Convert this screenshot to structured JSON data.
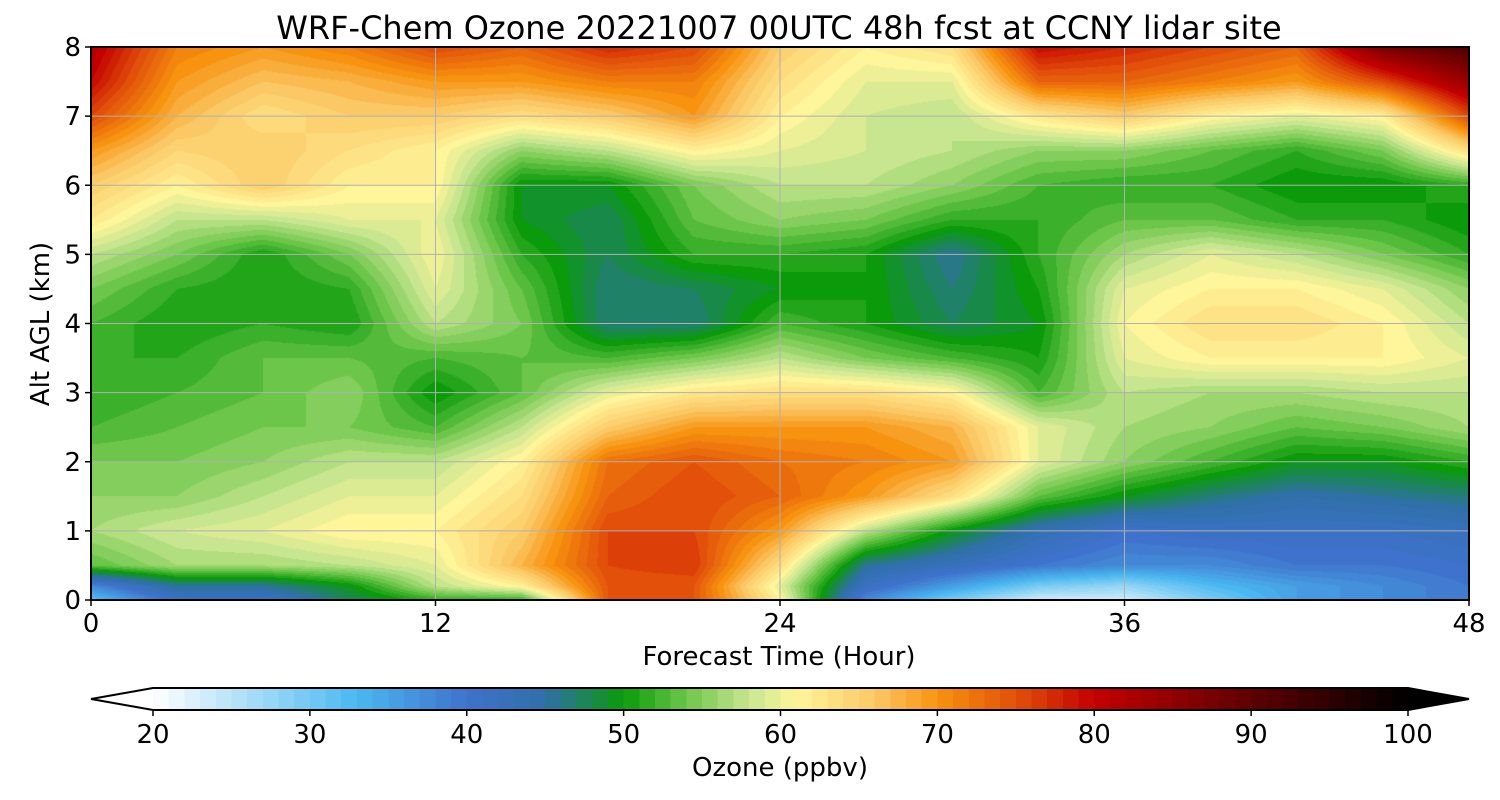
{
  "chart_data": {
    "type": "heatmap",
    "title": "WRF-Chem Ozone  20221007 00UTC 48h fcst at CCNY lidar site",
    "xlabel": "Forecast Time (Hour)",
    "ylabel": "Alt AGL (km)",
    "xlim": [
      0,
      48
    ],
    "ylim": [
      0,
      8
    ],
    "xticks": [
      "0",
      "12",
      "24",
      "36",
      "48"
    ],
    "yticks": [
      "0",
      "1",
      "2",
      "3",
      "4",
      "5",
      "6",
      "7",
      "8"
    ],
    "grid": true,
    "colorbar": {
      "label": "Ozone  (ppbv)",
      "range": [
        20,
        100
      ],
      "ticks": [
        "20",
        "30",
        "40",
        "50",
        "60",
        "70",
        "80",
        "90",
        "100"
      ],
      "extend": "both",
      "orientation": "horizontal"
    },
    "colormap": [
      [
        20,
        "#ffffff"
      ],
      [
        28,
        "#8fd3f5"
      ],
      [
        33,
        "#4ab8f0"
      ],
      [
        40,
        "#3f72cc"
      ],
      [
        45,
        "#2f70a8"
      ],
      [
        50,
        "#0a9a0a"
      ],
      [
        54,
        "#6cc64a"
      ],
      [
        58,
        "#c8e690"
      ],
      [
        61,
        "#fff59a"
      ],
      [
        66,
        "#fbc866"
      ],
      [
        70,
        "#f7930f"
      ],
      [
        75,
        "#e2500a"
      ],
      [
        80,
        "#c30000"
      ],
      [
        90,
        "#5e0000"
      ],
      [
        100,
        "#000000"
      ]
    ],
    "hours": [
      0,
      3,
      6,
      9,
      12,
      15,
      18,
      21,
      24,
      27,
      30,
      33,
      36,
      39,
      42,
      45,
      48
    ],
    "altitudes_km": [
      0,
      0.2,
      0.5,
      1,
      1.5,
      2,
      2.5,
      3,
      3.5,
      4,
      4.5,
      5,
      5.5,
      6,
      6.5,
      7,
      7.5,
      8
    ],
    "ozone_ppbv": [
      [
        32,
        42,
        42,
        48,
        52,
        52,
        75,
        75,
        62,
        38,
        30,
        24,
        24,
        30,
        36,
        38,
        40
      ],
      [
        38,
        46,
        46,
        50,
        58,
        62,
        75,
        75,
        60,
        42,
        36,
        30,
        28,
        33,
        36,
        38,
        40
      ],
      [
        54,
        57,
        57,
        58,
        60,
        68,
        76,
        77,
        64,
        46,
        43,
        40,
        38,
        38,
        40,
        40,
        41
      ],
      [
        57,
        59,
        60,
        62,
        62,
        66,
        76,
        76,
        70,
        58,
        50,
        44,
        41,
        42,
        42,
        42,
        43
      ],
      [
        56,
        56,
        58,
        60,
        60,
        64,
        74,
        76,
        74,
        70,
        64,
        54,
        50,
        47,
        45,
        46,
        47
      ],
      [
        55,
        55,
        56,
        58,
        58,
        62,
        73,
        75,
        73,
        72,
        70,
        60,
        56,
        53,
        50,
        50,
        52
      ],
      [
        53,
        54,
        55,
        55,
        53,
        58,
        66,
        70,
        70,
        70,
        68,
        60,
        57,
        56,
        54,
        55,
        57
      ],
      [
        52,
        53,
        54,
        56,
        50,
        54,
        60,
        63,
        64,
        64,
        62,
        53,
        58,
        57,
        57,
        58,
        58
      ],
      [
        52,
        52,
        54,
        54,
        53,
        54,
        53,
        55,
        58,
        55,
        53,
        51,
        60,
        62,
        62,
        62,
        60
      ],
      [
        53,
        51,
        52,
        51,
        58,
        55,
        47,
        47,
        53,
        51,
        48,
        50,
        61,
        64,
        64,
        62,
        58
      ],
      [
        55,
        52,
        51,
        52,
        60,
        54,
        47,
        48,
        50,
        51,
        47,
        51,
        60,
        62,
        62,
        60,
        56
      ],
      [
        58,
        55,
        51,
        55,
        61,
        52,
        48,
        52,
        52,
        51,
        46,
        52,
        57,
        60,
        58,
        55,
        52
      ],
      [
        63,
        58,
        58,
        60,
        60,
        50,
        48,
        54,
        56,
        55,
        52,
        52,
        54,
        54,
        52,
        52,
        50
      ],
      [
        66,
        62,
        66,
        62,
        62,
        50,
        50,
        55,
        58,
        58,
        56,
        53,
        52,
        52,
        50,
        50,
        52
      ],
      [
        70,
        65,
        66,
        64,
        62,
        56,
        58,
        62,
        60,
        59,
        58,
        56,
        56,
        54,
        52,
        55,
        64
      ],
      [
        76,
        68,
        64,
        66,
        66,
        64,
        66,
        70,
        62,
        59,
        58,
        63,
        66,
        62,
        60,
        62,
        76
      ],
      [
        80,
        70,
        67,
        68,
        70,
        70,
        72,
        72,
        64,
        60,
        60,
        74,
        74,
        72,
        70,
        76,
        85
      ],
      [
        82,
        72,
        70,
        72,
        76,
        74,
        78,
        76,
        66,
        62,
        64,
        80,
        78,
        76,
        74,
        88,
        92
      ]
    ]
  }
}
